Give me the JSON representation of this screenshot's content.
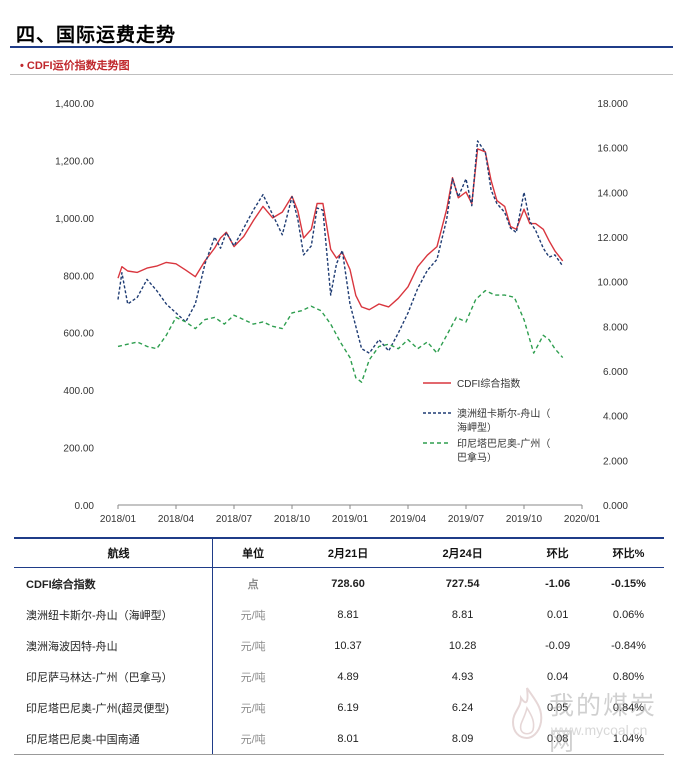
{
  "header": {
    "section_title": "四、国际运费走势",
    "subtitle": "• CDFI运价指数走势图"
  },
  "chart_data": {
    "type": "line",
    "title": "CDFI运价指数走势图",
    "x_ticks": [
      "2018/01",
      "2018/04",
      "2018/07",
      "2018/10",
      "2019/01",
      "2019/04",
      "2019/07",
      "2019/10",
      "2020/01"
    ],
    "left_axis": {
      "ylim": [
        0,
        1400
      ],
      "ticks": [
        "0.00",
        "200.00",
        "400.00",
        "600.00",
        "800.00",
        "1,000.00",
        "1,200.00",
        "1,400.00"
      ]
    },
    "right_axis": {
      "ylim": [
        0,
        18
      ],
      "ticks": [
        "0.000",
        "2.000",
        "4.000",
        "6.000",
        "8.000",
        "10.000",
        "12.000",
        "14.000",
        "16.000",
        "18.000"
      ]
    },
    "legend_position": "right-lower",
    "grid": false,
    "series": [
      {
        "name": "CDFI综合指数",
        "axis": "left",
        "color": "#d9363e",
        "dash": "solid",
        "points": [
          [
            0,
            790
          ],
          [
            0.2,
            830
          ],
          [
            0.5,
            815
          ],
          [
            1,
            810
          ],
          [
            1.5,
            825
          ],
          [
            2,
            832
          ],
          [
            2.5,
            845
          ],
          [
            3,
            840
          ],
          [
            3.5,
            818
          ],
          [
            4,
            795
          ],
          [
            4.5,
            850
          ],
          [
            5,
            895
          ],
          [
            5.3,
            930
          ],
          [
            5.6,
            950
          ],
          [
            6,
            900
          ],
          [
            6.5,
            935
          ],
          [
            7,
            990
          ],
          [
            7.5,
            1040
          ],
          [
            8,
            1000
          ],
          [
            8.5,
            1020
          ],
          [
            9,
            1075
          ],
          [
            9.3,
            1025
          ],
          [
            9.6,
            930
          ],
          [
            10,
            960
          ],
          [
            10.3,
            1050
          ],
          [
            10.6,
            1050
          ],
          [
            11,
            890
          ],
          [
            11.3,
            860
          ],
          [
            11.6,
            880
          ],
          [
            12,
            820
          ],
          [
            12.3,
            730
          ],
          [
            12.6,
            690
          ],
          [
            13,
            680
          ],
          [
            13.5,
            700
          ],
          [
            14,
            690
          ],
          [
            14.5,
            720
          ],
          [
            15,
            760
          ],
          [
            15.5,
            830
          ],
          [
            16,
            870
          ],
          [
            16.5,
            900
          ],
          [
            17,
            1030
          ],
          [
            17.3,
            1140
          ],
          [
            17.6,
            1070
          ],
          [
            18,
            1090
          ],
          [
            18.3,
            1050
          ],
          [
            18.6,
            1240
          ],
          [
            19,
            1230
          ],
          [
            19.3,
            1130
          ],
          [
            19.6,
            1060
          ],
          [
            20,
            1040
          ],
          [
            20.3,
            970
          ],
          [
            20.6,
            960
          ],
          [
            21,
            1030
          ],
          [
            21.3,
            980
          ],
          [
            21.6,
            980
          ],
          [
            22,
            960
          ],
          [
            22.3,
            920
          ],
          [
            22.6,
            885
          ],
          [
            23,
            850
          ]
        ]
      },
      {
        "name": "澳洲纽卡斯尔-舟山（海岬型）",
        "axis": "right",
        "color": "#1f3c73",
        "dash": "3,2",
        "points": [
          [
            0,
            9.2
          ],
          [
            0.2,
            10.4
          ],
          [
            0.5,
            9.0
          ],
          [
            1,
            9.3
          ],
          [
            1.5,
            10.1
          ],
          [
            2,
            9.6
          ],
          [
            2.5,
            9.0
          ],
          [
            3,
            8.6
          ],
          [
            3.5,
            8.2
          ],
          [
            4,
            9.0
          ],
          [
            4.5,
            10.8
          ],
          [
            5,
            12.0
          ],
          [
            5.3,
            11.5
          ],
          [
            5.6,
            12.2
          ],
          [
            6,
            11.6
          ],
          [
            6.5,
            12.4
          ],
          [
            7,
            13.2
          ],
          [
            7.5,
            13.9
          ],
          [
            8,
            13.0
          ],
          [
            8.5,
            12.1
          ],
          [
            9,
            13.8
          ],
          [
            9.3,
            12.8
          ],
          [
            9.6,
            11.2
          ],
          [
            10,
            11.6
          ],
          [
            10.3,
            13.3
          ],
          [
            10.6,
            13.2
          ],
          [
            11,
            9.4
          ],
          [
            11.3,
            10.8
          ],
          [
            11.6,
            11.4
          ],
          [
            12,
            9.0
          ],
          [
            12.3,
            8.0
          ],
          [
            12.6,
            7.0
          ],
          [
            13,
            6.8
          ],
          [
            13.5,
            7.4
          ],
          [
            14,
            6.9
          ],
          [
            14.5,
            7.7
          ],
          [
            15,
            8.6
          ],
          [
            15.5,
            9.7
          ],
          [
            16,
            10.5
          ],
          [
            16.5,
            11.0
          ],
          [
            17,
            12.8
          ],
          [
            17.3,
            14.6
          ],
          [
            17.6,
            13.8
          ],
          [
            18,
            14.6
          ],
          [
            18.3,
            13.4
          ],
          [
            18.6,
            16.3
          ],
          [
            19,
            15.8
          ],
          [
            19.3,
            14.1
          ],
          [
            19.6,
            13.5
          ],
          [
            20,
            13.1
          ],
          [
            20.3,
            12.4
          ],
          [
            20.6,
            12.2
          ],
          [
            21,
            14.0
          ],
          [
            21.3,
            12.7
          ],
          [
            21.6,
            12.3
          ],
          [
            22,
            11.5
          ],
          [
            22.3,
            11.1
          ],
          [
            22.6,
            11.2
          ],
          [
            23,
            10.7
          ]
        ]
      },
      {
        "name": "印尼塔巴尼奥-广州（巴拿马）",
        "axis": "right",
        "color": "#2e9e4f",
        "dash": "4,3",
        "points": [
          [
            0,
            7.1
          ],
          [
            0.5,
            7.2
          ],
          [
            1,
            7.3
          ],
          [
            1.5,
            7.1
          ],
          [
            2,
            7.0
          ],
          [
            2.5,
            7.6
          ],
          [
            3,
            8.4
          ],
          [
            3.5,
            8.2
          ],
          [
            4,
            7.9
          ],
          [
            4.5,
            8.3
          ],
          [
            5,
            8.4
          ],
          [
            5.5,
            8.1
          ],
          [
            6,
            8.5
          ],
          [
            6.5,
            8.3
          ],
          [
            7,
            8.1
          ],
          [
            7.5,
            8.2
          ],
          [
            8,
            8.0
          ],
          [
            8.5,
            7.9
          ],
          [
            9,
            8.6
          ],
          [
            9.5,
            8.7
          ],
          [
            10,
            8.9
          ],
          [
            10.5,
            8.7
          ],
          [
            11,
            8.1
          ],
          [
            11.5,
            7.3
          ],
          [
            12,
            6.6
          ],
          [
            12.3,
            5.7
          ],
          [
            12.6,
            5.5
          ],
          [
            13,
            6.5
          ],
          [
            13.5,
            7.1
          ],
          [
            14,
            7.2
          ],
          [
            14.5,
            7.0
          ],
          [
            15,
            7.4
          ],
          [
            15.5,
            7.0
          ],
          [
            16,
            7.3
          ],
          [
            16.5,
            6.8
          ],
          [
            17,
            7.6
          ],
          [
            17.5,
            8.4
          ],
          [
            18,
            8.2
          ],
          [
            18.5,
            9.2
          ],
          [
            19,
            9.6
          ],
          [
            19.5,
            9.4
          ],
          [
            20,
            9.4
          ],
          [
            20.5,
            9.3
          ],
          [
            21,
            8.3
          ],
          [
            21.5,
            6.8
          ],
          [
            22,
            7.6
          ],
          [
            22.3,
            7.4
          ],
          [
            22.6,
            7.0
          ],
          [
            23,
            6.6
          ]
        ]
      }
    ]
  },
  "table": {
    "headers": [
      "航线",
      "单位",
      "2月21日",
      "2月24日",
      "环比",
      "环比%"
    ],
    "rows": [
      {
        "name": "CDFI综合指数",
        "unit": "点",
        "v1": "728.60",
        "v2": "727.54",
        "chg": "-1.06",
        "pct": "-0.15%"
      },
      {
        "name": "澳洲纽卡斯尔-舟山（海岬型）",
        "unit": "元/吨",
        "v1": "8.81",
        "v2": "8.81",
        "chg": "0.01",
        "pct": "0.06%"
      },
      {
        "name": "澳洲海波因特-舟山",
        "unit": "元/吨",
        "v1": "10.37",
        "v2": "10.28",
        "chg": "-0.09",
        "pct": "-0.84%"
      },
      {
        "name": "印尼萨马林达-广州（巴拿马）",
        "unit": "元/吨",
        "v1": "4.89",
        "v2": "4.93",
        "chg": "0.04",
        "pct": "0.80%"
      },
      {
        "name": "印尼塔巴尼奥-广州(超灵便型)",
        "unit": "元/吨",
        "v1": "6.19",
        "v2": "6.24",
        "chg": "0.05",
        "pct": "0.84%"
      },
      {
        "name": "印尼塔巴尼奥-中国南通",
        "unit": "元/吨",
        "v1": "8.01",
        "v2": "8.09",
        "chg": "0.08",
        "pct": "1.04%"
      }
    ]
  },
  "watermark": {
    "title": "我的煤炭网",
    "url": "www.mycoal.cn"
  }
}
